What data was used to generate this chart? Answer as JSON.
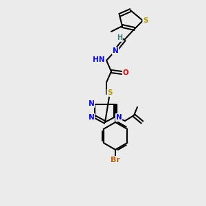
{
  "background_color": "#ebebeb",
  "atom_colors": {
    "S": "#b8a000",
    "N": "#0000ee",
    "O": "#ee0000",
    "Br": "#b86000",
    "C": "#000000",
    "H": "#408080"
  },
  "bond_color": "#000000",
  "figsize": [
    3.0,
    3.0
  ],
  "dpi": 100
}
